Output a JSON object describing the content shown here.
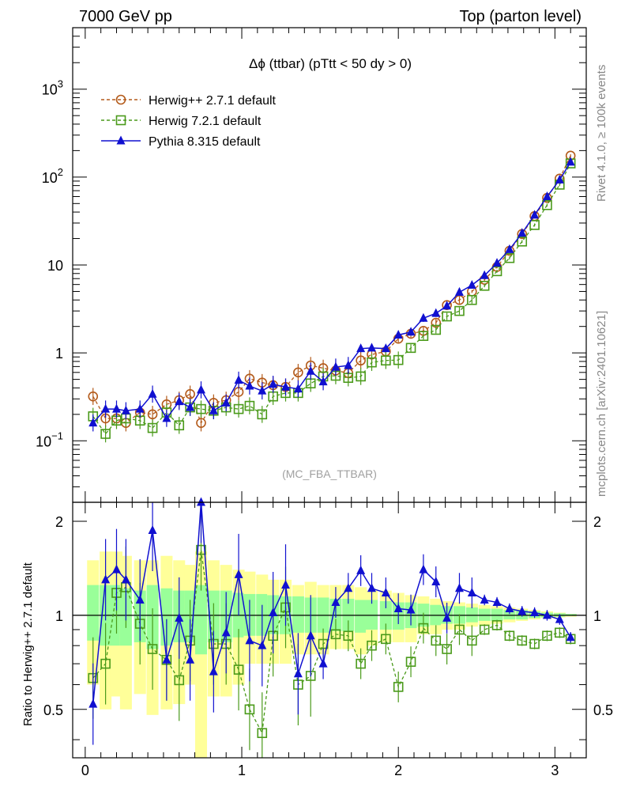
{
  "header": {
    "left": "7000 GeV pp",
    "right": "Top (parton level)"
  },
  "side_labels": {
    "rivet": "Rivet 4.1.0, ≥ 100k events",
    "mcplots": "mcplots.cern.ch [arXiv:2401.10621]"
  },
  "colors": {
    "herwig_pp": "#b35a1a",
    "herwig7": "#4a9a1a",
    "pythia": "#1010d0",
    "band_outer": "#ffff99",
    "band_inner": "#99ff99"
  },
  "chart_data": [
    {
      "type": "line",
      "panel": "main",
      "title": "Δϕ (ttbar) (pTtt < 50 dy > 0)",
      "analysis": "(MC_FBA_TTBAR)",
      "xlabel": "",
      "ylabel": "",
      "xlim": [
        -0.08,
        3.2
      ],
      "ylim": [
        0.02,
        5000
      ],
      "yscale": "log",
      "x_ticks": [
        "0",
        "1",
        "2",
        "3"
      ],
      "y_ticks": [
        {
          "value": 0.1,
          "base": "10",
          "exp": "−1"
        },
        {
          "value": 1,
          "label": "1"
        },
        {
          "value": 10,
          "label": "10"
        },
        {
          "value": 100,
          "base": "10",
          "exp": "2"
        },
        {
          "value": 1000,
          "base": "10",
          "exp": "3"
        }
      ],
      "x": [
        0.05,
        0.13,
        0.2,
        0.26,
        0.35,
        0.43,
        0.52,
        0.6,
        0.67,
        0.74,
        0.82,
        0.9,
        0.98,
        1.05,
        1.13,
        1.2,
        1.28,
        1.36,
        1.44,
        1.52,
        1.6,
        1.68,
        1.76,
        1.83,
        1.92,
        2.0,
        2.08,
        2.16,
        2.24,
        2.31,
        2.39,
        2.47,
        2.55,
        2.63,
        2.71,
        2.79,
        2.87,
        2.95,
        3.03,
        3.1
      ],
      "series": [
        {
          "name": "Herwig++ 2.7.1 default",
          "marker": "open-circle",
          "style": "dashed",
          "values": [
            0.32,
            0.18,
            0.18,
            0.16,
            0.21,
            0.2,
            0.26,
            0.29,
            0.34,
            0.16,
            0.27,
            0.29,
            0.36,
            0.51,
            0.46,
            0.43,
            0.41,
            0.6,
            0.72,
            0.67,
            0.63,
            0.59,
            0.82,
            0.96,
            1.04,
            1.45,
            1.65,
            1.78,
            2.2,
            3.5,
            4.0,
            5.0,
            6.8,
            9.5,
            14.5,
            22.5,
            36,
            58,
            96,
            175
          ]
        },
        {
          "name": "Herwig 7.2.1 default",
          "marker": "open-square",
          "style": "dashed",
          "values": [
            0.19,
            0.12,
            0.17,
            0.18,
            0.17,
            0.14,
            0.21,
            0.15,
            0.24,
            0.23,
            0.22,
            0.24,
            0.23,
            0.25,
            0.2,
            0.32,
            0.35,
            0.35,
            0.45,
            0.54,
            0.55,
            0.52,
            0.54,
            0.78,
            0.82,
            0.83,
            1.14,
            1.56,
            1.83,
            2.6,
            3.0,
            4.0,
            5.8,
            8.5,
            12,
            18.5,
            28.5,
            48,
            82,
            143
          ]
        },
        {
          "name": "Pythia 8.315 default",
          "marker": "filled-triangle",
          "style": "solid",
          "values": [
            0.16,
            0.23,
            0.23,
            0.22,
            0.23,
            0.34,
            0.18,
            0.28,
            0.24,
            0.38,
            0.22,
            0.27,
            0.49,
            0.42,
            0.37,
            0.44,
            0.41,
            0.39,
            0.62,
            0.47,
            0.69,
            0.72,
            1.12,
            1.14,
            1.12,
            1.6,
            1.73,
            2.48,
            2.82,
            3.42,
            4.9,
            5.9,
            7.6,
            10.5,
            15,
            23,
            37,
            60,
            93,
            148
          ]
        }
      ]
    },
    {
      "type": "line",
      "panel": "ratio",
      "ylabel": "Ratio to Herwig++ 2.7.1 default",
      "xlim": [
        -0.08,
        3.2
      ],
      "ylim": [
        0.35,
        2.3
      ],
      "yscale": "log",
      "x_ticks": [
        "0",
        "1",
        "2",
        "3"
      ],
      "y_ticks": [
        "0.5",
        "1",
        "2"
      ],
      "series": [
        {
          "name": "Herwig 7.2.1 default",
          "values": [
            0.63,
            0.7,
            1.18,
            1.23,
            0.94,
            0.78,
            0.72,
            0.62,
            0.83,
            1.62,
            0.81,
            0.81,
            0.67,
            0.5,
            0.42,
            0.86,
            1.06,
            0.6,
            0.64,
            0.81,
            0.87,
            0.86,
            0.7,
            0.8,
            0.84,
            0.59,
            0.71,
            0.91,
            0.83,
            0.78,
            0.9,
            0.83,
            0.9,
            0.93,
            0.86,
            0.83,
            0.81,
            0.86,
            0.88,
            0.84
          ]
        },
        {
          "name": "Pythia 8.315 default",
          "values": [
            0.52,
            1.3,
            1.4,
            1.3,
            1.12,
            1.87,
            0.72,
            0.98,
            0.72,
            2.3,
            0.66,
            0.88,
            1.35,
            0.83,
            0.8,
            1.02,
            1.25,
            0.65,
            0.86,
            0.7,
            1.1,
            1.22,
            1.39,
            1.22,
            1.18,
            1.05,
            1.04,
            1.4,
            1.28,
            0.98,
            1.22,
            1.18,
            1.12,
            1.1,
            1.05,
            1.03,
            1.02,
            1.0,
            0.97,
            0.85
          ]
        }
      ],
      "band": {
        "outer_low": [
          0.6,
          0.5,
          0.55,
          0.5,
          0.56,
          0.48,
          0.5,
          0.52,
          0.6,
          0.33,
          0.55,
          0.55,
          0.6,
          0.7,
          0.7,
          0.7,
          0.7,
          0.75,
          0.75,
          0.75,
          0.78,
          0.78,
          0.75,
          0.8,
          0.82,
          0.82,
          0.82,
          0.87,
          0.87,
          0.9,
          0.9,
          0.92,
          0.93,
          0.94,
          0.95,
          0.96,
          0.97,
          0.98,
          0.985,
          0.99
        ],
        "outer_high": [
          1.5,
          1.6,
          1.6,
          1.55,
          1.5,
          1.5,
          1.55,
          1.5,
          1.45,
          1.6,
          1.5,
          1.45,
          1.4,
          1.38,
          1.35,
          1.3,
          1.3,
          1.25,
          1.28,
          1.25,
          1.25,
          1.25,
          1.23,
          1.2,
          1.2,
          1.18,
          1.16,
          1.15,
          1.13,
          1.11,
          1.1,
          1.09,
          1.08,
          1.07,
          1.06,
          1.05,
          1.04,
          1.03,
          1.02,
          1.01
        ],
        "inner_low": [
          0.83,
          0.8,
          0.8,
          0.8,
          0.82,
          0.78,
          0.8,
          0.82,
          0.82,
          0.75,
          0.82,
          0.82,
          0.85,
          0.86,
          0.86,
          0.87,
          0.87,
          0.88,
          0.88,
          0.88,
          0.89,
          0.89,
          0.88,
          0.9,
          0.9,
          0.9,
          0.91,
          0.92,
          0.93,
          0.94,
          0.94,
          0.95,
          0.96,
          0.96,
          0.97,
          0.97,
          0.98,
          0.985,
          0.99,
          0.995
        ],
        "inner_high": [
          1.25,
          1.25,
          1.25,
          1.22,
          1.2,
          1.25,
          1.22,
          1.2,
          1.2,
          1.25,
          1.2,
          1.2,
          1.18,
          1.17,
          1.17,
          1.16,
          1.15,
          1.15,
          1.14,
          1.14,
          1.13,
          1.13,
          1.12,
          1.12,
          1.11,
          1.1,
          1.1,
          1.09,
          1.08,
          1.07,
          1.07,
          1.06,
          1.05,
          1.05,
          1.04,
          1.04,
          1.03,
          1.02,
          1.015,
          1.01
        ]
      }
    }
  ]
}
